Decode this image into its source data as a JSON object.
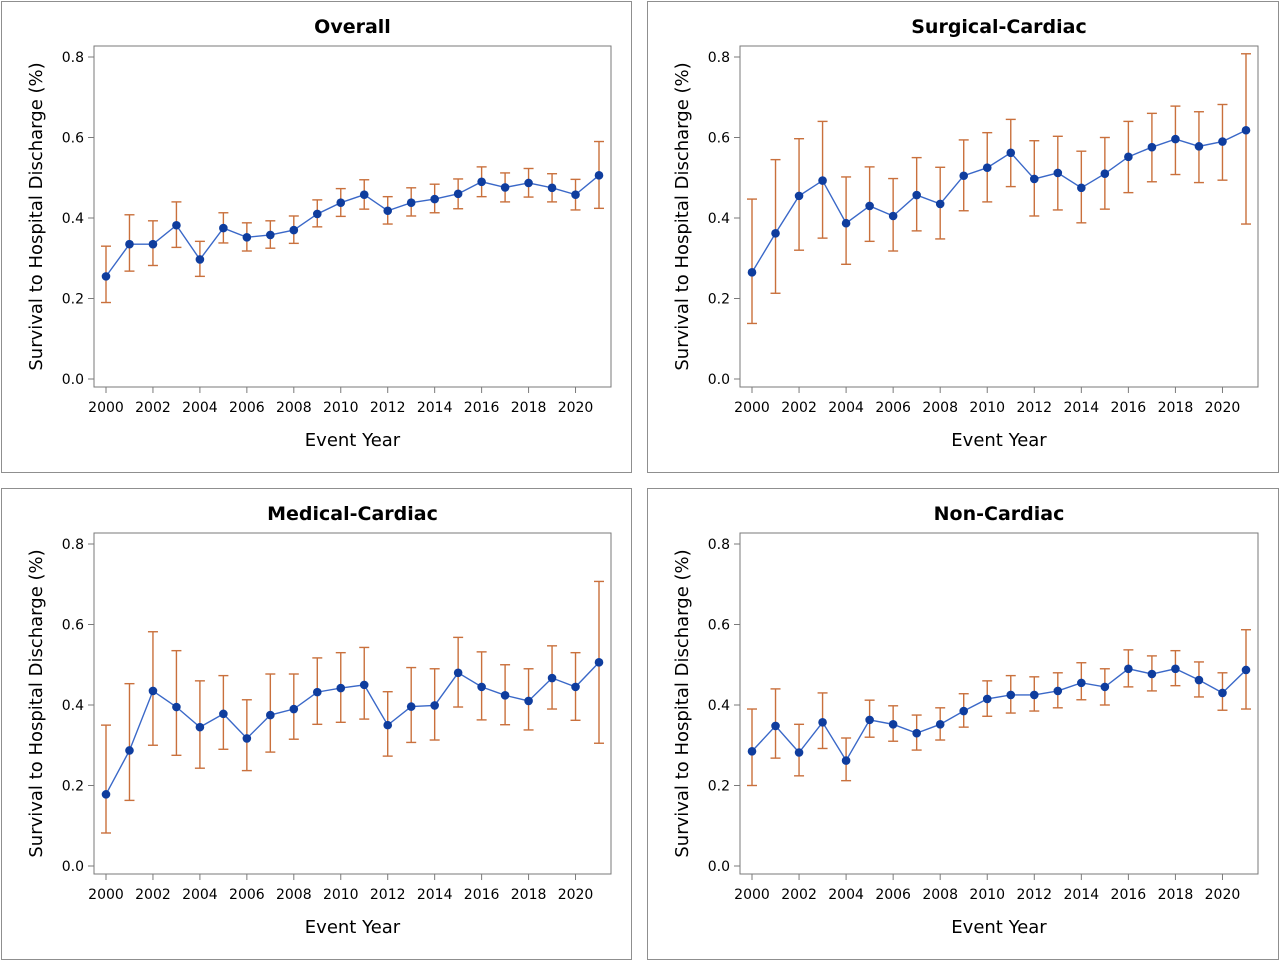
{
  "colors": {
    "line": "#3a68c8",
    "marker": "#0f3d9e",
    "error_bar": "#c9703c",
    "frame": "#7a7a7a"
  },
  "chart_data": [
    {
      "type": "line",
      "title": "Overall",
      "xlabel": "Event Year",
      "ylabel": "Survival to Hospital Discharge (%)",
      "xlim": [
        2000,
        2021
      ],
      "ylim": [
        0.0,
        0.8
      ],
      "x_ticks": [
        "2000",
        "2002",
        "2004",
        "2006",
        "2008",
        "2010",
        "2012",
        "2014",
        "2016",
        "2018",
        "2020"
      ],
      "y_ticks": [
        "0.0",
        "0.2",
        "0.4",
        "0.6",
        "0.8"
      ],
      "grid": false,
      "x": [
        2000,
        2001,
        2002,
        2003,
        2004,
        2005,
        2006,
        2007,
        2008,
        2009,
        2010,
        2011,
        2012,
        2013,
        2014,
        2015,
        2016,
        2017,
        2018,
        2019,
        2020,
        2021
      ],
      "values": [
        0.255,
        0.335,
        0.335,
        0.382,
        0.297,
        0.375,
        0.352,
        0.358,
        0.37,
        0.41,
        0.438,
        0.458,
        0.418,
        0.438,
        0.447,
        0.46,
        0.49,
        0.476,
        0.487,
        0.475,
        0.458,
        0.506
      ],
      "lower": [
        0.19,
        0.268,
        0.282,
        0.327,
        0.255,
        0.338,
        0.318,
        0.325,
        0.337,
        0.378,
        0.404,
        0.422,
        0.385,
        0.405,
        0.413,
        0.423,
        0.453,
        0.44,
        0.452,
        0.44,
        0.42,
        0.424
      ],
      "upper": [
        0.33,
        0.408,
        0.393,
        0.44,
        0.342,
        0.413,
        0.388,
        0.393,
        0.405,
        0.445,
        0.473,
        0.495,
        0.453,
        0.475,
        0.484,
        0.497,
        0.527,
        0.512,
        0.523,
        0.51,
        0.496,
        0.59
      ]
    },
    {
      "type": "line",
      "title": "Surgical-Cardiac",
      "xlabel": "Event Year",
      "ylabel": "Survival to Hospital Discharge (%)",
      "xlim": [
        2000,
        2021
      ],
      "ylim": [
        0.0,
        0.8
      ],
      "x_ticks": [
        "2000",
        "2002",
        "2004",
        "2006",
        "2008",
        "2010",
        "2012",
        "2014",
        "2016",
        "2018",
        "2020"
      ],
      "y_ticks": [
        "0.0",
        "0.2",
        "0.4",
        "0.6",
        "0.8"
      ],
      "grid": false,
      "x": [
        2000,
        2001,
        2002,
        2003,
        2004,
        2005,
        2006,
        2007,
        2008,
        2009,
        2010,
        2011,
        2012,
        2013,
        2014,
        2015,
        2016,
        2017,
        2018,
        2019,
        2020,
        2021
      ],
      "values": [
        0.265,
        0.362,
        0.455,
        0.493,
        0.387,
        0.43,
        0.405,
        0.457,
        0.435,
        0.505,
        0.525,
        0.562,
        0.497,
        0.512,
        0.475,
        0.51,
        0.552,
        0.576,
        0.596,
        0.578,
        0.59,
        0.618
      ],
      "lower": [
        0.138,
        0.213,
        0.32,
        0.35,
        0.285,
        0.342,
        0.318,
        0.368,
        0.348,
        0.418,
        0.44,
        0.478,
        0.405,
        0.42,
        0.388,
        0.422,
        0.463,
        0.49,
        0.508,
        0.488,
        0.494,
        0.385
      ],
      "upper": [
        0.447,
        0.545,
        0.597,
        0.64,
        0.502,
        0.527,
        0.498,
        0.55,
        0.526,
        0.594,
        0.612,
        0.645,
        0.592,
        0.603,
        0.566,
        0.6,
        0.64,
        0.66,
        0.678,
        0.664,
        0.682,
        0.808
      ]
    },
    {
      "type": "line",
      "title": "Medical-Cardiac",
      "xlabel": "Event Year",
      "ylabel": "Survival to Hospital Discharge (%)",
      "xlim": [
        2000,
        2021
      ],
      "ylim": [
        0.0,
        0.8
      ],
      "x_ticks": [
        "2000",
        "2002",
        "2004",
        "2006",
        "2008",
        "2010",
        "2012",
        "2014",
        "2016",
        "2018",
        "2020"
      ],
      "y_ticks": [
        "0.0",
        "0.2",
        "0.4",
        "0.6",
        "0.8"
      ],
      "grid": false,
      "x": [
        2000,
        2001,
        2002,
        2003,
        2004,
        2005,
        2006,
        2007,
        2008,
        2009,
        2010,
        2011,
        2012,
        2013,
        2014,
        2015,
        2016,
        2017,
        2018,
        2019,
        2020,
        2021
      ],
      "values": [
        0.178,
        0.287,
        0.435,
        0.395,
        0.345,
        0.378,
        0.317,
        0.375,
        0.39,
        0.432,
        0.442,
        0.45,
        0.35,
        0.396,
        0.399,
        0.48,
        0.445,
        0.424,
        0.41,
        0.467,
        0.445,
        0.506
      ],
      "lower": [
        0.082,
        0.163,
        0.3,
        0.275,
        0.243,
        0.29,
        0.237,
        0.283,
        0.315,
        0.352,
        0.357,
        0.365,
        0.273,
        0.307,
        0.313,
        0.395,
        0.363,
        0.351,
        0.338,
        0.39,
        0.362,
        0.305
      ],
      "upper": [
        0.35,
        0.453,
        0.582,
        0.535,
        0.46,
        0.473,
        0.413,
        0.477,
        0.477,
        0.517,
        0.53,
        0.543,
        0.433,
        0.493,
        0.49,
        0.568,
        0.532,
        0.5,
        0.49,
        0.547,
        0.53,
        0.707
      ]
    },
    {
      "type": "line",
      "title": "Non-Cardiac",
      "xlabel": "Event Year",
      "ylabel": "Survival to Hospital Discharge (%)",
      "xlim": [
        2000,
        2021
      ],
      "ylim": [
        0.0,
        0.8
      ],
      "x_ticks": [
        "2000",
        "2002",
        "2004",
        "2006",
        "2008",
        "2010",
        "2012",
        "2014",
        "2016",
        "2018",
        "2020"
      ],
      "y_ticks": [
        "0.0",
        "0.2",
        "0.4",
        "0.6",
        "0.8"
      ],
      "grid": false,
      "x": [
        2000,
        2001,
        2002,
        2003,
        2004,
        2005,
        2006,
        2007,
        2008,
        2009,
        2010,
        2011,
        2012,
        2013,
        2014,
        2015,
        2016,
        2017,
        2018,
        2019,
        2020,
        2021
      ],
      "values": [
        0.285,
        0.348,
        0.282,
        0.357,
        0.262,
        0.363,
        0.352,
        0.33,
        0.352,
        0.385,
        0.415,
        0.425,
        0.425,
        0.435,
        0.455,
        0.445,
        0.49,
        0.477,
        0.49,
        0.462,
        0.43,
        0.487
      ],
      "lower": [
        0.2,
        0.268,
        0.224,
        0.292,
        0.212,
        0.32,
        0.31,
        0.288,
        0.313,
        0.345,
        0.372,
        0.38,
        0.385,
        0.393,
        0.413,
        0.4,
        0.445,
        0.435,
        0.448,
        0.42,
        0.387,
        0.39
      ],
      "upper": [
        0.39,
        0.44,
        0.352,
        0.43,
        0.318,
        0.412,
        0.398,
        0.375,
        0.393,
        0.428,
        0.46,
        0.473,
        0.47,
        0.48,
        0.505,
        0.49,
        0.537,
        0.522,
        0.535,
        0.507,
        0.48,
        0.587
      ]
    }
  ]
}
